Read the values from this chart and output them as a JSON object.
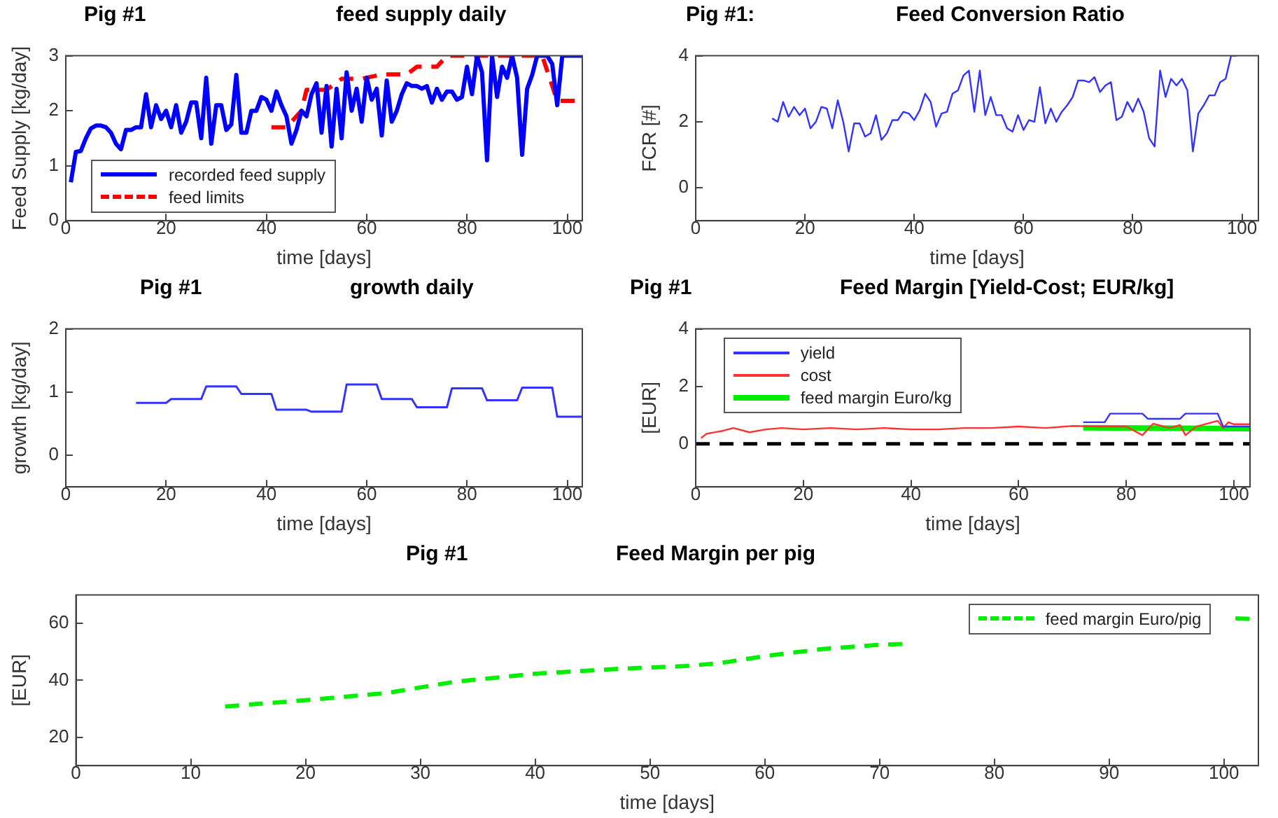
{
  "chart_data": [
    {
      "type": "line",
      "title": "Pig #1",
      "subtitle": "feed supply daily",
      "xlabel": "time [days]",
      "ylabel": "Feed Supply [kg/day]",
      "xlim": [
        0,
        103
      ],
      "xticks": [
        0,
        20,
        40,
        60,
        80,
        100
      ],
      "ylim": [
        0,
        3
      ],
      "yticks": [
        0,
        1,
        2,
        3
      ],
      "grid": false,
      "legend": "bottom left",
      "marker": "none",
      "series": [
        {
          "name": "recorded feed supply",
          "color": "#0000ff",
          "line_style": "solid",
          "x": [
            1,
            2,
            3,
            4,
            5,
            6,
            7,
            8,
            9,
            10,
            11,
            12,
            13,
            14,
            15,
            16,
            17,
            18,
            19,
            20,
            21,
            22,
            23,
            24,
            25,
            26,
            27,
            28,
            29,
            30,
            31,
            32,
            33,
            34,
            35,
            36,
            37,
            38,
            39,
            40,
            41,
            42,
            43,
            44,
            45,
            46,
            47,
            48,
            49,
            50,
            51,
            52,
            53,
            54,
            55,
            56,
            57,
            58,
            59,
            60,
            61,
            62,
            63,
            64,
            65,
            66,
            67,
            68,
            69,
            70,
            71,
            72,
            73,
            74,
            75,
            76,
            77,
            78,
            79,
            80,
            81,
            82,
            83,
            84,
            85,
            86,
            87,
            88,
            89,
            90,
            91,
            92,
            93,
            94,
            95,
            96,
            97,
            98,
            99,
            100,
            103
          ],
          "values": [
            0.7,
            1.25,
            1.27,
            1.5,
            1.68,
            1.73,
            1.73,
            1.7,
            1.6,
            1.4,
            1.3,
            1.65,
            1.65,
            1.7,
            1.7,
            2.3,
            1.7,
            2.1,
            1.85,
            2.0,
            1.7,
            2.1,
            1.6,
            1.8,
            2.15,
            2.15,
            1.5,
            2.6,
            1.4,
            2.1,
            2.1,
            1.65,
            1.75,
            2.65,
            1.6,
            1.6,
            2.0,
            2.0,
            2.25,
            2.2,
            2.0,
            2.35,
            2.1,
            1.9,
            1.4,
            1.65,
            2.0,
            1.9,
            2.3,
            2.5,
            1.6,
            2.45,
            1.35,
            2.4,
            1.5,
            2.7,
            2.0,
            2.4,
            1.8,
            2.6,
            2.2,
            2.4,
            1.55,
            2.55,
            1.8,
            2.0,
            2.3,
            2.5,
            2.45,
            2.45,
            2.4,
            2.45,
            2.15,
            2.4,
            2.2,
            2.35,
            2.35,
            2.2,
            2.25,
            2.8,
            2.3,
            3.0,
            2.7,
            1.1,
            3.0,
            2.25,
            2.8,
            2.6,
            3.0,
            2.6,
            1.2,
            2.4,
            2.65,
            3.0,
            3.0,
            3.0,
            2.85,
            2.1,
            3.0,
            3.0,
            3.0
          ]
        },
        {
          "name": "feed limits",
          "color": "#ff0000",
          "line_style": "dashed",
          "x": [
            41,
            44,
            47,
            48,
            52,
            55,
            59,
            63,
            68,
            70,
            74,
            76,
            95,
            98,
            103
          ],
          "values": [
            1.7,
            1.7,
            2.0,
            2.38,
            2.38,
            2.58,
            2.58,
            2.66,
            2.66,
            2.8,
            2.8,
            3.0,
            3.0,
            2.18,
            2.18
          ]
        }
      ]
    },
    {
      "type": "line",
      "title": "Pig #1:",
      "subtitle": "Feed Conversion Ratio",
      "xlabel": "time [days]",
      "ylabel": "FCR [#]",
      "xlim": [
        0,
        103
      ],
      "xticks": [
        0,
        20,
        40,
        60,
        80,
        100
      ],
      "ylim": [
        -1,
        4
      ],
      "yticks": [
        0,
        2,
        4
      ],
      "grid": false,
      "marker": "none",
      "series": [
        {
          "color": "#3333ff",
          "x": [
            14,
            15,
            16,
            17,
            18,
            19,
            20,
            21,
            22,
            23,
            24,
            25,
            26,
            27,
            28,
            29,
            30,
            31,
            32,
            33,
            34,
            35,
            36,
            37,
            38,
            39,
            40,
            41,
            42,
            43,
            44,
            45,
            46,
            47,
            48,
            49,
            50,
            51,
            52,
            53,
            54,
            55,
            56,
            57,
            58,
            59,
            60,
            61,
            62,
            63,
            64,
            65,
            66,
            67,
            68,
            69,
            70,
            71,
            72,
            73,
            74,
            75,
            76,
            77,
            78,
            79,
            80,
            81,
            82,
            83,
            84,
            85,
            86,
            87,
            88,
            89,
            90,
            91,
            92,
            93,
            94,
            95,
            96,
            97,
            98,
            99
          ],
          "values": [
            2.1,
            2.0,
            2.6,
            2.15,
            2.45,
            2.2,
            2.4,
            1.8,
            2.0,
            2.45,
            2.4,
            1.8,
            2.65,
            2.0,
            1.1,
            1.95,
            1.95,
            1.55,
            1.65,
            2.2,
            1.45,
            1.65,
            2.05,
            2.05,
            2.3,
            2.25,
            2.05,
            2.35,
            2.85,
            2.6,
            1.85,
            2.25,
            2.3,
            2.85,
            2.95,
            3.4,
            3.55,
            2.3,
            3.55,
            2.2,
            2.75,
            2.2,
            2.2,
            1.8,
            1.7,
            2.2,
            1.75,
            2.05,
            2.0,
            3.05,
            1.95,
            2.4,
            2.0,
            2.3,
            2.5,
            2.75,
            3.25,
            3.25,
            3.2,
            3.35,
            2.9,
            3.1,
            3.2,
            2.05,
            2.15,
            2.6,
            2.3,
            2.7,
            2.3,
            1.5,
            1.25,
            3.55,
            2.75,
            3.3,
            3.1,
            3.3,
            2.95,
            1.1,
            2.25,
            2.5,
            2.8,
            2.8,
            3.2,
            3.3,
            4.0,
            4.0
          ]
        }
      ]
    },
    {
      "type": "line",
      "title": "Pig #1",
      "subtitle": "growth daily",
      "xlabel": "time [days]",
      "ylabel": "growth [kg/day]",
      "xlim": [
        0,
        103
      ],
      "xticks": [
        0,
        20,
        40,
        60,
        80,
        100
      ],
      "ylim": [
        -0.5,
        2
      ],
      "yticks": [
        0,
        1,
        2
      ],
      "grid": false,
      "marker": "none",
      "series": [
        {
          "color": "#3333ff",
          "x": [
            14,
            20,
            21,
            27,
            28,
            34,
            35,
            41,
            42,
            48,
            49,
            55,
            56,
            62,
            63,
            69,
            70,
            76,
            77,
            83,
            84,
            90,
            91,
            97,
            98,
            103
          ],
          "values": [
            0.83,
            0.83,
            0.89,
            0.89,
            1.09,
            1.09,
            0.97,
            0.97,
            0.72,
            0.72,
            0.69,
            0.69,
            1.12,
            1.12,
            0.89,
            0.89,
            0.76,
            0.76,
            1.06,
            1.06,
            0.87,
            0.87,
            1.07,
            1.07,
            0.61,
            0.61
          ]
        }
      ]
    },
    {
      "type": "line",
      "title": "Pig #1",
      "subtitle": "Feed Margin [Yield-Cost; EUR/kg]",
      "xlabel": "time [days]",
      "ylabel": "[EUR]",
      "xlim": [
        0,
        103
      ],
      "xticks": [
        0,
        20,
        40,
        60,
        80,
        100
      ],
      "ylim": [
        -1.5,
        4
      ],
      "yticks": [
        0,
        2,
        4
      ],
      "grid": false,
      "legend": "top left",
      "marker": "none",
      "ref_lines": [
        {
          "axis": "y",
          "value": 0,
          "color": "#000000",
          "line_style": "dashed"
        }
      ],
      "series": [
        {
          "name": "yield",
          "color": "#3333ff",
          "x": [
            72,
            76,
            77,
            83,
            84,
            90,
            91,
            97,
            98,
            103
          ],
          "values": [
            0.75,
            0.75,
            1.05,
            1.05,
            0.87,
            0.87,
            1.05,
            1.05,
            0.6,
            0.6
          ]
        },
        {
          "name": "cost",
          "color": "#ff3333",
          "x": [
            1,
            2,
            5,
            7,
            10,
            13,
            16,
            20,
            25,
            30,
            35,
            40,
            45,
            50,
            55,
            60,
            65,
            70,
            75,
            80,
            83,
            85,
            88,
            90,
            91,
            93,
            96,
            97,
            98,
            99,
            100,
            103
          ],
          "values": [
            0.2,
            0.35,
            0.45,
            0.55,
            0.4,
            0.5,
            0.55,
            0.5,
            0.55,
            0.5,
            0.55,
            0.5,
            0.5,
            0.55,
            0.55,
            0.6,
            0.55,
            0.62,
            0.6,
            0.6,
            0.3,
            0.7,
            0.55,
            0.65,
            0.3,
            0.6,
            0.75,
            0.8,
            0.55,
            0.75,
            0.68,
            0.68
          ]
        },
        {
          "name": "feed margin Euro/kg",
          "color": "#00ee00",
          "x": [
            72,
            103
          ],
          "values": [
            0.56,
            0.53
          ]
        }
      ]
    },
    {
      "type": "line",
      "title": "Pig #1",
      "subtitle": "Feed Margin per pig",
      "xlabel": "time [days]",
      "ylabel": "[EUR]",
      "xlim": [
        0,
        103
      ],
      "xticks": [
        0,
        10,
        20,
        30,
        40,
        50,
        60,
        70,
        80,
        90,
        100
      ],
      "ylim": [
        10,
        70
      ],
      "yticks": [
        20,
        40,
        60
      ],
      "grid": false,
      "legend": "top right",
      "marker": "none",
      "series": [
        {
          "name": "feed margin Euro/pig",
          "color": "#00ee00",
          "line_style": "dashed",
          "x": [
            13,
            20,
            27,
            33,
            40,
            47,
            53,
            56,
            60,
            65,
            70,
            72,
            76,
            101,
            103
          ],
          "values": [
            30.8,
            33,
            35.5,
            39.5,
            42.3,
            44,
            45,
            46,
            48.5,
            51,
            52.5,
            52.8,
            null,
            61.8,
            61.5
          ]
        }
      ]
    }
  ]
}
